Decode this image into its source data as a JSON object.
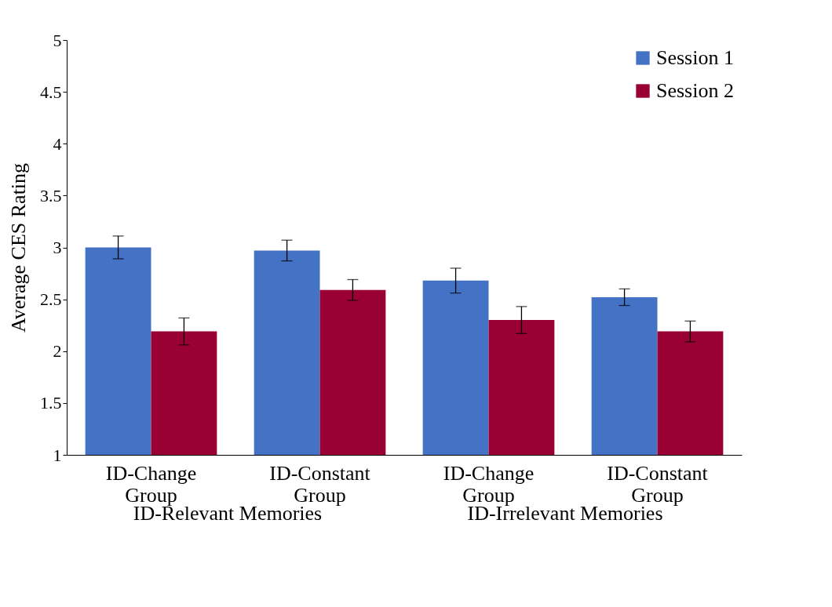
{
  "chart_data": {
    "type": "bar",
    "ylabel": "Average CES Rating",
    "categories": [
      "ID-Change Group",
      "ID-Constant Group",
      "ID-Change Group",
      "ID-Constant Group"
    ],
    "series": [
      {
        "name": "Session 1",
        "color": "#4472c4",
        "values": [
          3.0,
          2.97,
          2.68,
          2.52
        ],
        "errors": [
          0.11,
          0.1,
          0.12,
          0.08
        ]
      },
      {
        "name": "Session 2",
        "color": "#990033",
        "values": [
          2.19,
          2.59,
          2.3,
          2.19
        ],
        "errors": [
          0.13,
          0.1,
          0.13,
          0.1
        ]
      }
    ],
    "ylim": [
      1,
      5
    ],
    "yticks": [
      1,
      1.5,
      2,
      2.5,
      3,
      3.5,
      4,
      4.5,
      5
    ],
    "grid": false,
    "legend": "top right",
    "annotations": [
      "ID-Relevant Memories",
      "ID-Irrelevant Memories"
    ]
  }
}
